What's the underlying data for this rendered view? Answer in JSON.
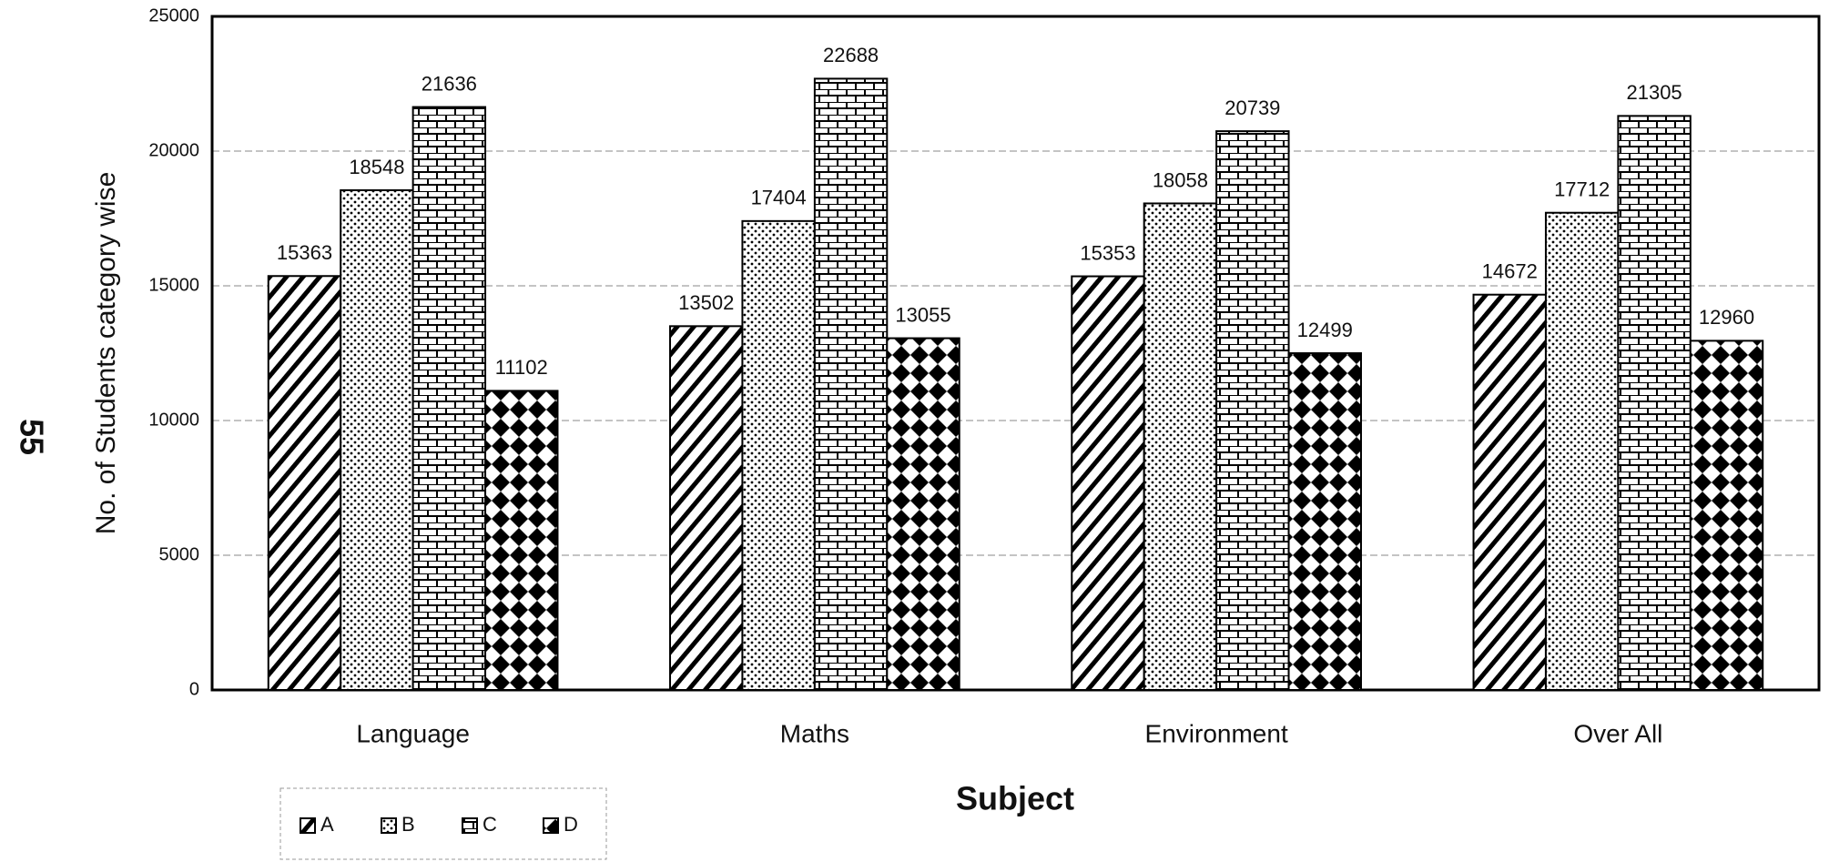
{
  "page_number": "55",
  "chart_data": {
    "type": "bar",
    "xlabel": "Subject",
    "ylabel": "No. of Students category wise",
    "categories": [
      "Language",
      "Maths",
      "Environment",
      "Over All"
    ],
    "series": [
      {
        "name": "A",
        "color": "#000000",
        "values": [
          15363,
          13502,
          15353,
          14672
        ]
      },
      {
        "name": "B",
        "color": "#000000",
        "values": [
          18548,
          17404,
          18058,
          17712
        ]
      },
      {
        "name": "C",
        "color": "#000000",
        "values": [
          21636,
          22688,
          20739,
          21305
        ]
      },
      {
        "name": "D",
        "color": "#000000",
        "values": [
          11102,
          13055,
          12499,
          12960
        ]
      }
    ],
    "ylim": [
      0,
      25000
    ],
    "yticks": [
      0,
      5000,
      10000,
      15000,
      20000,
      25000
    ],
    "grid": true,
    "legend": "bottom-left"
  }
}
